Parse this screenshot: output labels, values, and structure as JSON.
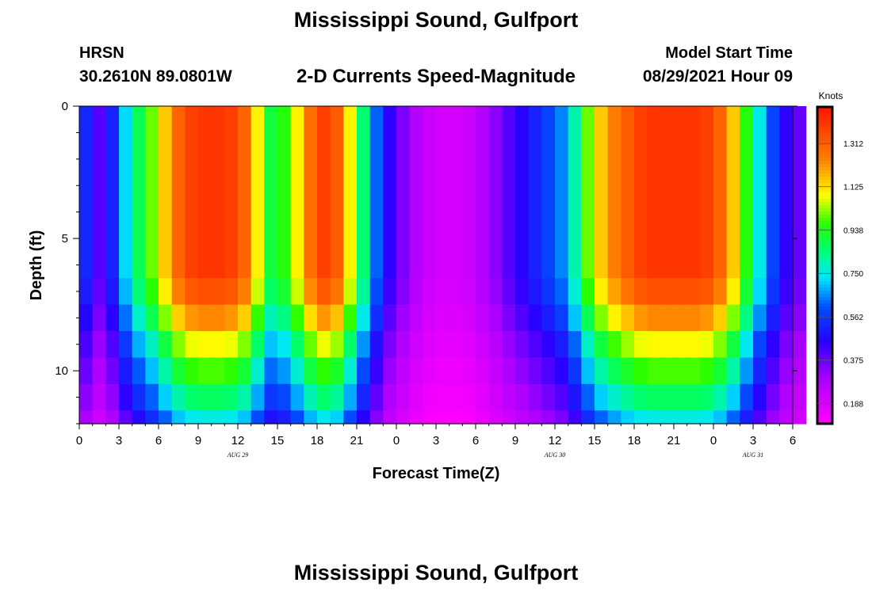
{
  "header": {
    "title": "Mississippi Sound, Gulfport",
    "station_id": "HRSN",
    "station_location": "30.2610N  89.0801W",
    "subtitle": "2-D Currents Speed-Magnitude",
    "model_label": "Model Start Time",
    "model_time": "08/29/2021 Hour 09"
  },
  "footer": {
    "title": "Mississippi Sound, Gulfport"
  },
  "chart_data": {
    "type": "heatmap",
    "xlabel": "Forecast Time(Z)",
    "ylabel": "Depth (ft)",
    "xlim": [
      0,
      54
    ],
    "ylim": [
      0,
      12
    ],
    "x_tick_labels": [
      "0",
      "3",
      "6",
      "9",
      "12",
      "15",
      "18",
      "21",
      "0",
      "3",
      "6",
      "9",
      "12",
      "15",
      "18",
      "21",
      "0",
      "3",
      "6"
    ],
    "y_ticks": [
      0,
      5,
      10
    ],
    "date_labels": [
      {
        "text": "AUG 29",
        "x": 12
      },
      {
        "text": "AUG 30",
        "x": 36
      },
      {
        "text": "AUG 31",
        "x": 51
      }
    ],
    "colorbar": {
      "title": "Knots",
      "ticks": [
        "1.312",
        "1.125",
        "0.938",
        "0.750",
        "0.562",
        "0.375",
        "0.188"
      ],
      "vmin": 0.1,
      "vmax": 1.47
    },
    "depth_levels": [
      0,
      6.5,
      7.5,
      8.5,
      9.5,
      10.5,
      11.5,
      12
    ],
    "surface_speed_knots": [
      0.53,
      0.4,
      0.52,
      0.72,
      0.88,
      1.0,
      1.15,
      1.3,
      1.38,
      1.4,
      1.4,
      1.38,
      1.3,
      1.1,
      0.9,
      0.95,
      1.1,
      1.28,
      1.38,
      1.32,
      1.1,
      0.85,
      0.62,
      0.45,
      0.35,
      0.27,
      0.22,
      0.2,
      0.2,
      0.22,
      0.27,
      0.33,
      0.4,
      0.46,
      0.52,
      0.58,
      0.65,
      0.8,
      1.0,
      1.15,
      1.25,
      1.32,
      1.38,
      1.4,
      1.4,
      1.4,
      1.4,
      1.38,
      1.3,
      1.15,
      0.95,
      0.75,
      0.58,
      0.45,
      0.38
    ],
    "depth_speed_factors": [
      1.0,
      0.96,
      0.88,
      0.78,
      0.7,
      0.62,
      0.54,
      0.5
    ]
  }
}
